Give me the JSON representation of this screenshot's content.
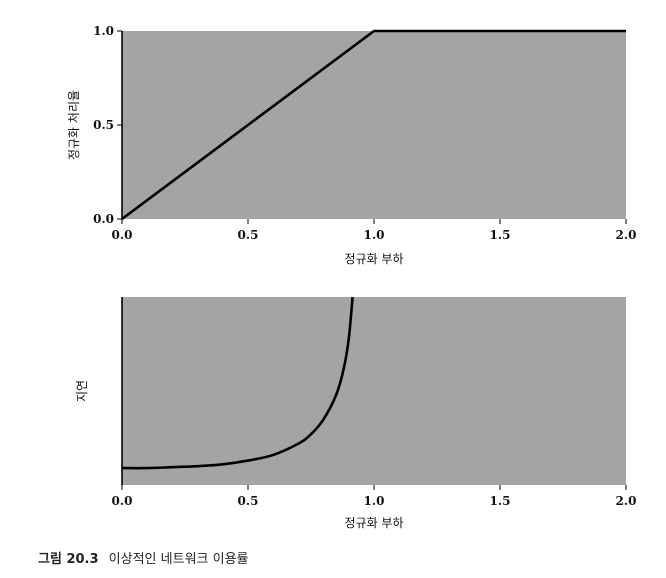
{
  "chart_data": [
    {
      "type": "line",
      "title": "",
      "xlabel": "정규화 부하",
      "ylabel": "정규화 처리율",
      "xlim": [
        0,
        2.0
      ],
      "ylim": [
        0,
        1.0
      ],
      "x_ticks": [
        "0.0",
        "0.5",
        "1.0",
        "1.5",
        "2.0"
      ],
      "y_ticks": [
        "0.0",
        "0.5",
        "1.0"
      ],
      "grid": false,
      "background": "#a4a4a7",
      "line_color": "#000000",
      "series": [
        {
          "x": [
            0.0,
            0.5,
            1.0,
            1.5,
            2.0
          ],
          "y": [
            0.0,
            0.5,
            1.0,
            1.0,
            1.0
          ]
        }
      ]
    },
    {
      "type": "line",
      "title": "",
      "xlabel": "정규화 부하",
      "ylabel": "지연",
      "xlim": [
        0,
        2.0
      ],
      "ylim": [
        0,
        1.0
      ],
      "x_ticks": [
        "0.0",
        "0.5",
        "1.0",
        "1.5",
        "2.0"
      ],
      "y_ticks": [],
      "grid": false,
      "background": "#a4a4a7",
      "line_color": "#000000",
      "series": [
        {
          "x": [
            0.0,
            0.1,
            0.2,
            0.3,
            0.4,
            0.5,
            0.6,
            0.7,
            0.75,
            0.8,
            0.85,
            0.88,
            0.9,
            0.915
          ],
          "y": [
            0.09,
            0.09,
            0.095,
            0.1,
            0.11,
            0.13,
            0.16,
            0.22,
            0.27,
            0.35,
            0.48,
            0.62,
            0.78,
            1.0
          ]
        }
      ]
    }
  ],
  "caption": {
    "figure_number": "그림 20.3",
    "text": "이상적인 네트워크 이용률"
  }
}
